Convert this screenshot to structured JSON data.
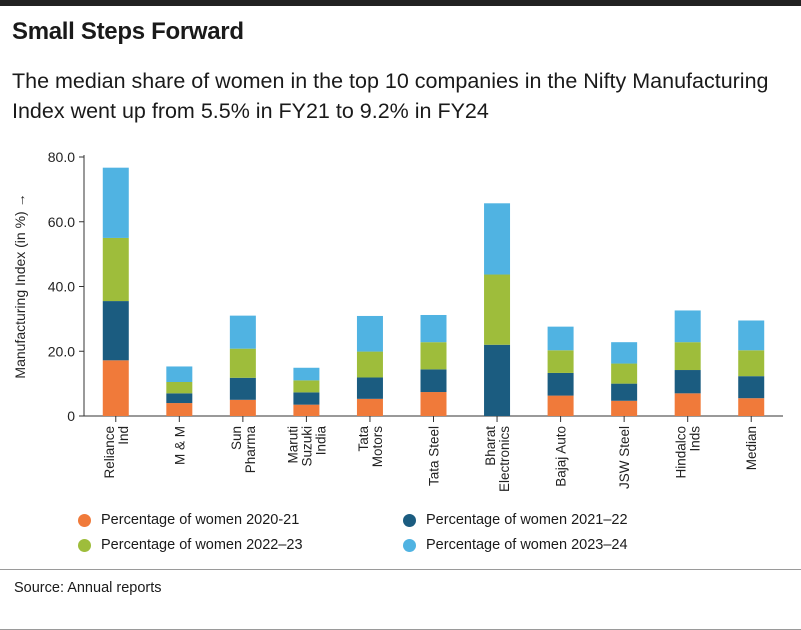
{
  "header": {
    "title": "Small Steps Forward",
    "subtitle": "The median share of women in the top 10 companies in the Nifty Manufacturing Index went up from 5.5% in FY21 to 9.2% in FY24"
  },
  "chart_data": {
    "type": "bar",
    "stacked": true,
    "categories": [
      [
        "Reliance",
        "Ind"
      ],
      [
        "M & M"
      ],
      [
        "Sun",
        "Pharma"
      ],
      [
        "Maruti",
        "Suzuki",
        "India"
      ],
      [
        "Tata",
        "Motors"
      ],
      [
        "Tata Steel"
      ],
      [
        "Bharat",
        "Electronics"
      ],
      [
        "Bajaj Auto"
      ],
      [
        "JSW Steel"
      ],
      [
        "Hindalco",
        "Inds"
      ],
      [
        "Median"
      ]
    ],
    "series": [
      {
        "name": "Percentage of women 2020-21",
        "color": "#f07a3a",
        "values": [
          17.2,
          4.0,
          5.0,
          3.5,
          5.3,
          7.4,
          0.0,
          6.3,
          4.7,
          7.0,
          5.5
        ]
      },
      {
        "name": "Percentage of women 2021–22",
        "color": "#1b5c80",
        "values": [
          18.3,
          3.0,
          6.8,
          3.8,
          6.6,
          7.0,
          22.0,
          7.0,
          5.3,
          7.2,
          6.8
        ]
      },
      {
        "name": "Percentage of women 2022–23",
        "color": "#9ebd3b",
        "values": [
          19.5,
          3.5,
          9.0,
          3.7,
          8.0,
          8.4,
          21.7,
          7.0,
          6.2,
          8.6,
          8.0
        ]
      },
      {
        "name": "Percentage of women 2023–24",
        "color": "#50b3e2",
        "values": [
          21.7,
          4.8,
          10.2,
          3.9,
          11.0,
          8.4,
          22.0,
          7.3,
          6.6,
          9.8,
          9.2
        ]
      }
    ],
    "ylabel": "Manufacturing Index (in %) →",
    "ylim": [
      0,
      80
    ],
    "yticks": [
      "0",
      "20.0",
      "40.0",
      "60.0",
      "80.0"
    ],
    "ytick_values": [
      0,
      20,
      40,
      60,
      80
    ],
    "grid": false,
    "legend_position": "bottom"
  },
  "footer": {
    "source": "Source: Annual reports"
  }
}
